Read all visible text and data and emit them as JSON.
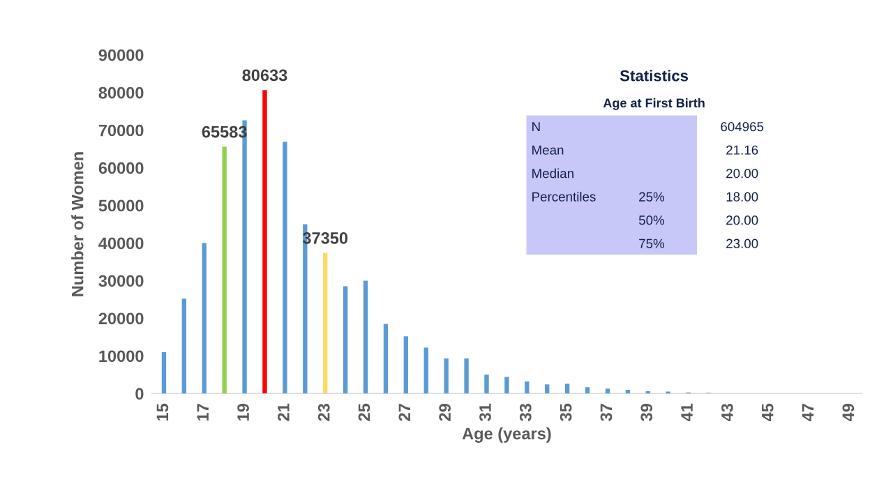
{
  "chart_data": {
    "type": "bar",
    "xlabel": "Age (years)",
    "ylabel": "Number of Women",
    "categories": [
      "15",
      null,
      "17",
      null,
      "19",
      null,
      "21",
      null,
      "23",
      null,
      "25",
      null,
      "27",
      null,
      "29",
      null,
      "31",
      null,
      "33",
      null,
      "35",
      null,
      "37",
      null,
      "39",
      null,
      "41",
      null,
      "43",
      null,
      "45",
      null,
      "47",
      null,
      "49"
    ],
    "values": [
      11000,
      25200,
      40000,
      65583,
      72600,
      80633,
      66900,
      45000,
      37350,
      28500,
      30000,
      18500,
      15200,
      12200,
      9300,
      9300,
      5000,
      4400,
      3200,
      2400,
      2600,
      1700,
      1300,
      1000,
      600,
      500,
      300,
      200,
      0,
      0,
      0,
      0,
      0,
      0,
      0
    ],
    "colors": [
      "#5b9bd5",
      "#5b9bd5",
      "#5b9bd5",
      "#92d050",
      "#5b9bd5",
      "#ff0000",
      "#5b9bd5",
      "#5b9bd5",
      "#ffd966",
      "#5b9bd5",
      "#5b9bd5",
      "#5b9bd5",
      "#5b9bd5",
      "#5b9bd5",
      "#5b9bd5",
      "#5b9bd5",
      "#5b9bd5",
      "#5b9bd5",
      "#5b9bd5",
      "#5b9bd5",
      "#5b9bd5",
      "#5b9bd5",
      "#5b9bd5",
      "#5b9bd5",
      "#5b9bd5",
      "#5b9bd5",
      "#5b9bd5",
      "#5b9bd5",
      "#5b9bd5",
      "#5b9bd5",
      "#5b9bd5",
      "#5b9bd5",
      "#5b9bd5",
      "#5b9bd5",
      "#5b9bd5"
    ],
    "value_labels": [
      null,
      null,
      null,
      "65583",
      null,
      "80633",
      null,
      null,
      "37350",
      null,
      null,
      null,
      null,
      null,
      null,
      null,
      null,
      null,
      null,
      null,
      null,
      null,
      null,
      null,
      null,
      null,
      null,
      null,
      null,
      null,
      null,
      null,
      null,
      null,
      null
    ],
    "ylim": [
      0,
      90000
    ],
    "yticks": [
      0,
      10000,
      20000,
      30000,
      40000,
      50000,
      60000,
      70000,
      80000,
      90000
    ],
    "grid": false,
    "annotations": [
      "Statistics",
      "Age at First Birth",
      "N",
      "604965",
      "Mean",
      "21.16",
      "Median",
      "20.00",
      "Percentiles",
      "25%",
      "18.00",
      "50%",
      "20.00",
      "75%",
      "23.00"
    ]
  }
}
